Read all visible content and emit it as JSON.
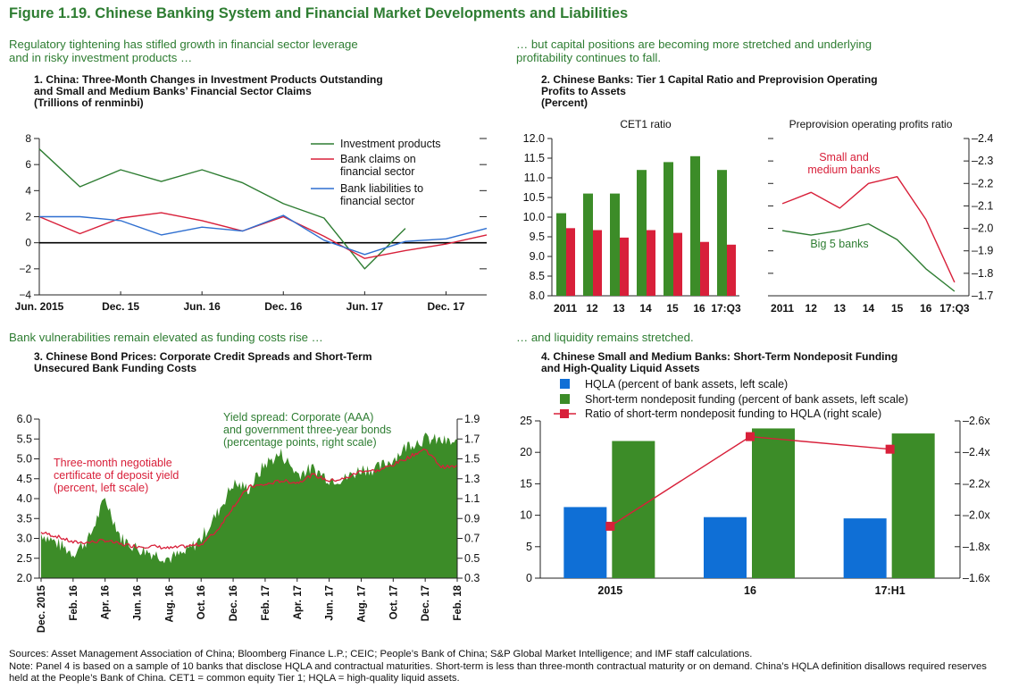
{
  "figure_title": "Figure 1.19. Chinese Banking System and Financial Market Developments and Liabilities",
  "subtitles": {
    "top_left": [
      "Regulatory tightening has stifled growth in financial sector leverage",
      "and in risky investment products …"
    ],
    "top_right": [
      "… but capital positions are becoming more stretched and underlying",
      "profitability continues to fall."
    ],
    "bottom_left": "Bank vulnerabilities remain elevated as funding costs rise …",
    "bottom_right": "… and liquidity remains stretched."
  },
  "panels": {
    "p1": {
      "title": [
        "1. China: Three-Month Changes in Investment Products Outstanding",
        "and Small and Medium Banks’ Financial Sector Claims"
      ],
      "units": "(Trillions of renminbi)"
    },
    "p2": {
      "title": [
        "2. Chinese Banks: Tier 1 Capital Ratio and Preprovision Operating",
        "Profits to Assets"
      ],
      "units": "(Percent)"
    },
    "p3": {
      "title": [
        "3. Chinese Bond Prices: Corporate Credit Spreads and Short-Term",
        "Unsecured Bank Funding Costs"
      ]
    },
    "p4": {
      "title": [
        "4. Chinese Small and Medium Banks: Short-Term Nondeposit Funding",
        "and High-Quality Liquid Assets"
      ]
    }
  },
  "notes": {
    "sources": "Sources: Asset Management Association of China; Bloomberg Finance L.P.; CEIC; People’s Bank of China; S&P Global Market Intelligence; and IMF staff calculations.",
    "note": "Note: Panel 4 is based on a sample of 10 banks that disclose HQLA and contractual maturities. Short-term is less than three-month contractual maturity or on demand. China’s HQLA definition disallows required reserves held at the People’s Bank of China. CET1 = common equity Tier 1; HQLA = high-quality liquid assets."
  },
  "colors": {
    "green": "#2e7d32",
    "green_fill": "#3c8c28",
    "red": "#d8203a",
    "blue": "#2f6fd0",
    "bar_blue": "#0f6fd6",
    "title_green": "#2e7d32"
  },
  "chart_data": [
    {
      "id": "p1",
      "type": "line",
      "x_ticks": [
        "Jun. 2015",
        "Dec. 15",
        "Jun. 16",
        "Dec. 16",
        "Jun. 17",
        "Dec. 17"
      ],
      "ylim": [
        -4,
        8
      ],
      "y_ticks": [
        "−4",
        "−2",
        "0",
        "2",
        "4",
        "6",
        "8"
      ],
      "series": [
        {
          "name": "Investment products",
          "x": [
            "2015-06",
            "2015-09",
            "2015-12",
            "2016-03",
            "2016-06",
            "2016-09",
            "2016-12",
            "2017-03",
            "2017-06",
            "2017-09"
          ],
          "values": [
            7.2,
            4.3,
            5.6,
            4.7,
            5.6,
            4.6,
            3.0,
            1.9,
            -2.0,
            1.1
          ]
        },
        {
          "name": [
            "Bank claims on",
            "financial sector"
          ],
          "x": [
            "2015-06",
            "2015-09",
            "2015-12",
            "2016-03",
            "2016-06",
            "2016-09",
            "2016-12",
            "2017-03",
            "2017-06",
            "2017-09",
            "2017-12",
            "2018-03"
          ],
          "values": [
            2.0,
            0.7,
            1.9,
            2.3,
            1.7,
            0.9,
            2.0,
            0.5,
            -1.2,
            -0.6,
            -0.1,
            0.6
          ]
        },
        {
          "name": [
            "Bank liabilities to",
            "financial sector"
          ],
          "x": [
            "2015-06",
            "2015-09",
            "2015-12",
            "2016-03",
            "2016-06",
            "2016-09",
            "2016-12",
            "2017-03",
            "2017-06",
            "2017-09",
            "2017-12",
            "2018-03"
          ],
          "values": [
            2.0,
            2.0,
            1.7,
            0.6,
            1.2,
            0.9,
            2.1,
            0.2,
            -0.9,
            0.1,
            0.3,
            1.1
          ]
        }
      ]
    },
    {
      "id": "p2a",
      "type": "bar",
      "title": "CET1 ratio",
      "categories": [
        "2011",
        "12",
        "13",
        "14",
        "15",
        "16",
        "17:Q3"
      ],
      "ylim": [
        8.0,
        12.0
      ],
      "y_ticks": [
        "8.0",
        "8.5",
        "9.0",
        "9.5",
        "10.0",
        "10.5",
        "11.0",
        "11.5",
        "12.0"
      ],
      "series": [
        {
          "values": [
            10.1,
            10.6,
            10.6,
            11.2,
            11.4,
            11.55,
            11.2
          ]
        },
        {
          "values": [
            9.72,
            9.67,
            9.48,
            9.67,
            9.6,
            9.37,
            9.3
          ]
        }
      ]
    },
    {
      "id": "p2b",
      "type": "line",
      "title": "Preprovision operating profits ratio",
      "categories": [
        "2011",
        "12",
        "13",
        "14",
        "15",
        "16",
        "17:Q3"
      ],
      "ylim": [
        1.7,
        2.4
      ],
      "y_ticks": [
        "1.7",
        "1.8",
        "1.9",
        "2.0",
        "2.1",
        "2.2",
        "2.3",
        "2.4"
      ],
      "series": [
        {
          "name": [
            "Small and",
            "medium banks"
          ],
          "values": [
            2.11,
            2.16,
            2.09,
            2.2,
            2.23,
            2.04,
            1.76
          ]
        },
        {
          "name": "Big 5 banks",
          "values": [
            1.99,
            1.97,
            1.99,
            2.02,
            1.95,
            1.82,
            1.72
          ]
        }
      ]
    },
    {
      "id": "p3",
      "type": "area",
      "x_ticks": [
        "Dec. 2015",
        "Feb. 16",
        "Apr. 16",
        "Jun. 16",
        "Aug. 16",
        "Oct. 16",
        "Dec. 16",
        "Feb. 17",
        "Apr. 17",
        "Jun. 17",
        "Aug. 17",
        "Oct. 17",
        "Dec. 17",
        "Feb. 18"
      ],
      "ylim_left": [
        2.0,
        6.0
      ],
      "ylim_right": [
        0.3,
        1.9
      ],
      "y_ticks_left": [
        "2.0",
        "2.5",
        "3.0",
        "3.5",
        "4.0",
        "4.5",
        "5.0",
        "5.5",
        "6.0"
      ],
      "y_ticks_right": [
        "0.3",
        "0.5",
        "0.7",
        "0.9",
        "1.1",
        "1.3",
        "1.5",
        "1.7",
        "1.9"
      ],
      "series": [
        {
          "name": [
            "Yield spread: Corporate (AAA)",
            "and government three-year bonds",
            "(percentage points, right scale)"
          ],
          "axis": "right",
          "x": [
            "2015-12",
            "2016-01",
            "2016-02",
            "2016-03",
            "2016-04",
            "2016-05",
            "2016-06",
            "2016-07",
            "2016-08",
            "2016-09",
            "2016-10",
            "2016-11",
            "2016-12",
            "2017-01",
            "2017-02",
            "2017-03",
            "2017-04",
            "2017-05",
            "2017-06",
            "2017-07",
            "2017-08",
            "2017-09",
            "2017-10",
            "2017-11",
            "2017-12",
            "2018-01",
            "2018-02"
          ],
          "values": [
            0.75,
            0.65,
            0.55,
            0.7,
            1.1,
            0.7,
            0.6,
            0.55,
            0.5,
            0.55,
            0.7,
            0.95,
            1.25,
            1.2,
            1.45,
            1.55,
            1.35,
            1.4,
            1.3,
            1.3,
            1.4,
            1.4,
            1.5,
            1.65,
            1.7,
            1.68,
            1.65
          ]
        },
        {
          "name": [
            "Three-month negotiable",
            "certificate of deposit yield",
            "(percent, left scale)"
          ],
          "axis": "left",
          "x": [
            "2015-12",
            "2016-01",
            "2016-02",
            "2016-03",
            "2016-04",
            "2016-05",
            "2016-06",
            "2016-07",
            "2016-08",
            "2016-09",
            "2016-10",
            "2016-11",
            "2016-12",
            "2017-01",
            "2017-02",
            "2017-03",
            "2017-04",
            "2017-05",
            "2017-06",
            "2017-07",
            "2017-08",
            "2017-09",
            "2017-10",
            "2017-11",
            "2017-12",
            "2018-01",
            "2018-02"
          ],
          "values": [
            3.15,
            3.05,
            2.9,
            2.9,
            2.95,
            2.85,
            2.8,
            2.8,
            2.75,
            2.8,
            2.85,
            3.2,
            3.8,
            4.3,
            4.35,
            4.45,
            4.4,
            4.6,
            4.45,
            4.5,
            4.7,
            4.7,
            4.85,
            5.05,
            5.25,
            4.8,
            4.8
          ]
        }
      ]
    },
    {
      "id": "p4",
      "type": "bar",
      "categories": [
        "2015",
        "16",
        "17:H1"
      ],
      "ylim_left": [
        0,
        25
      ],
      "ylim_right": [
        1.6,
        2.6
      ],
      "y_ticks_left": [
        "0",
        "5",
        "10",
        "15",
        "20",
        "25"
      ],
      "y_ticks_right": [
        "1.6x",
        "1.8x",
        "2.0x",
        "2.2x",
        "2.4x",
        "2.6x"
      ],
      "series": [
        {
          "name": "HQLA (percent of bank assets, left scale)",
          "axis": "left",
          "values": [
            11.3,
            9.7,
            9.5
          ]
        },
        {
          "name": "Short-term nondeposit funding (percent of bank assets, left scale)",
          "axis": "left",
          "values": [
            21.8,
            23.8,
            23.0
          ]
        },
        {
          "name": "Ratio of short-term nondeposit funding to HQLA (right scale)",
          "axis": "right",
          "values": [
            1.93,
            2.5,
            2.42
          ]
        }
      ]
    }
  ]
}
